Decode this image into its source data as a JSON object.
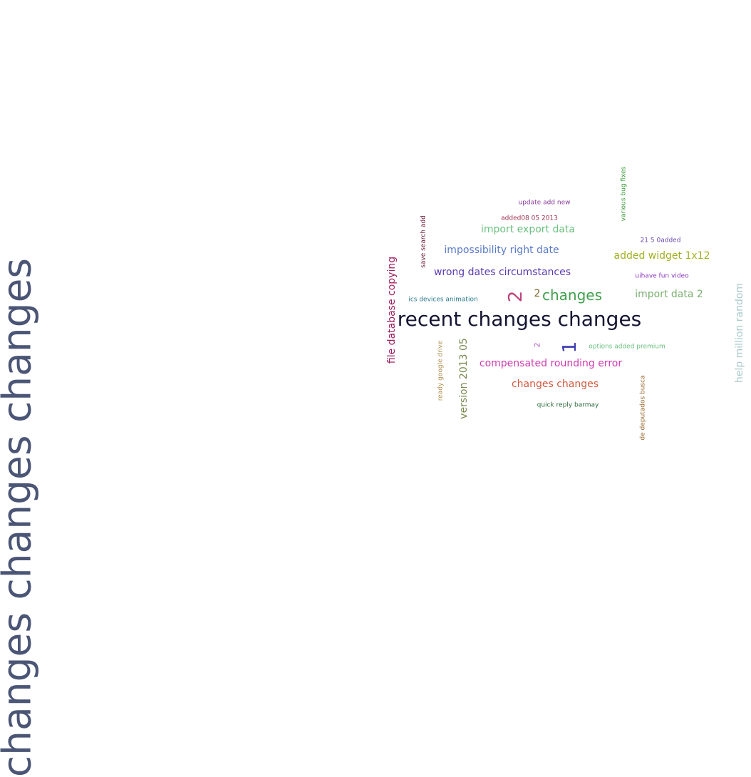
{
  "cloud": {
    "words": [
      {
        "text": "changes changes changes",
        "color": "#4b5575"
      },
      {
        "text": "recent changes changes",
        "color": "#141432"
      },
      {
        "text": "changes",
        "color": "#3fa04a"
      },
      {
        "text": "2",
        "color": "#c0407c"
      },
      {
        "text": "2",
        "color": "#7c6a28"
      },
      {
        "text": "1",
        "color": "#3a3ab0"
      },
      {
        "text": "2",
        "color": "#b460c8"
      },
      {
        "text": "import export data",
        "color": "#6cc080"
      },
      {
        "text": "impossibility right date",
        "color": "#5a7ac8"
      },
      {
        "text": "wrong dates circumstances",
        "color": "#5a3ab0"
      },
      {
        "text": "added widget 1x12",
        "color": "#a0b020"
      },
      {
        "text": "import data 2",
        "color": "#7ab070"
      },
      {
        "text": "compensated rounding error",
        "color": "#d03ab0"
      },
      {
        "text": "changes changes",
        "color": "#d05a40"
      },
      {
        "text": "file database copying",
        "color": "#a02060"
      },
      {
        "text": "version 2013 05",
        "color": "#7a8a50"
      },
      {
        "text": "help million random",
        "color": "#aacaca"
      },
      {
        "text": "update add new",
        "color": "#8a3aa0"
      },
      {
        "text": "added08 05 2013",
        "color": "#a03050"
      },
      {
        "text": "save search add",
        "color": "#6a1a3a"
      },
      {
        "text": "various bug fixes",
        "color": "#3a9a3a"
      },
      {
        "text": "21 5 0added",
        "color": "#6a4ab0"
      },
      {
        "text": "uihave fun video",
        "color": "#8a3ac0"
      },
      {
        "text": "ics devices animation",
        "color": "#2a7a8a"
      },
      {
        "text": "ready google drive",
        "color": "#b09050"
      },
      {
        "text": "options added premium",
        "color": "#6ac080"
      },
      {
        "text": "quick reply barmay",
        "color": "#2a6a3a"
      },
      {
        "text": "de deputados busca",
        "color": "#9a6a30"
      }
    ]
  }
}
